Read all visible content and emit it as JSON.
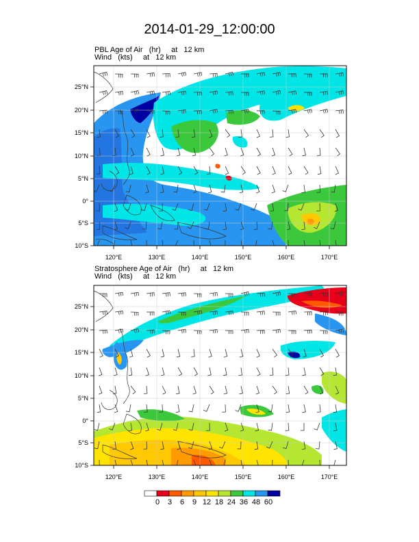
{
  "title": "2014-01-29_12:00:00",
  "panels": [
    {
      "line1": "PBL Age of Air   (hr)     at   12 km",
      "line2": "Wind   (kts)     at   12 km"
    },
    {
      "line1": "Stratosphere Age of Air   (hr)     at   12 km",
      "line2": "Wind   (kts)     at   12 km"
    }
  ],
  "lon_labels": [
    "120°E",
    "130°E",
    "140°E",
    "150°E",
    "160°E",
    "170°E"
  ],
  "lat_labels": [
    "25°N",
    "20°N",
    "15°N",
    "10°N",
    "5°N",
    "0°",
    "5°S",
    "10°S"
  ],
  "colorbar": {
    "labels": [
      "0",
      "3",
      "6",
      "9",
      "12",
      "18",
      "24",
      "36",
      "48",
      "60"
    ],
    "colors": [
      "#ffffff",
      "#e8001a",
      "#ff5a00",
      "#ff9a00",
      "#ffc800",
      "#ffe400",
      "#b4e632",
      "#3cc83c",
      "#00e6e6",
      "#2896f0",
      "#0000a0"
    ]
  }
}
